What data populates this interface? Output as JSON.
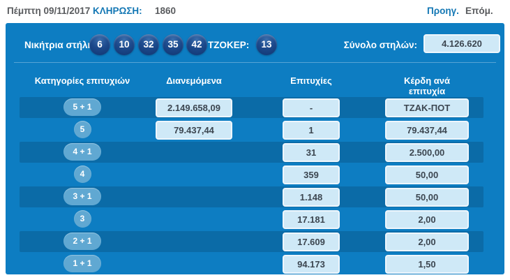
{
  "top_bar": {
    "date": "Πέμπτη 09/11/2017",
    "draw_label": "ΚΛΗΡΩΣΗ:",
    "draw_number": "1860",
    "prev_label": "Προηγ.",
    "next_label": "Επόμ."
  },
  "winning_section": {
    "winning_label": "Νικήτρια στήλη:",
    "numbers": [
      "6",
      "10",
      "32",
      "35",
      "42"
    ],
    "joker_label": "ΤΖΟΚΕΡ:",
    "joker_number": "13",
    "total_label": "Σύνολο στηλών:",
    "total_value": "4.126.620"
  },
  "table": {
    "headers": [
      "Κατηγορίες επιτυχιών",
      "Διανεμόμενα",
      "Επιτυχίες",
      "Κέρδη ανά επιτυχία"
    ],
    "rows": [
      {
        "category": "5 + 1",
        "distributed": "2.149.658,09",
        "winners": "-",
        "prize": "ΤΖΑΚ-ΠΟΤ"
      },
      {
        "category": "5",
        "distributed": "79.437,44",
        "winners": "1",
        "prize": "79.437,44"
      },
      {
        "category": "4 + 1",
        "distributed": "",
        "winners": "31",
        "prize": "2.500,00"
      },
      {
        "category": "4",
        "distributed": "",
        "winners": "359",
        "prize": "50,00"
      },
      {
        "category": "3 + 1",
        "distributed": "",
        "winners": "1.148",
        "prize": "50,00"
      },
      {
        "category": "3",
        "distributed": "",
        "winners": "17.181",
        "prize": "2,00"
      },
      {
        "category": "2 + 1",
        "distributed": "",
        "winners": "17.609",
        "prize": "2,00"
      },
      {
        "category": "1 + 1",
        "distributed": "",
        "winners": "94.173",
        "prize": "1,50"
      }
    ]
  },
  "colors": {
    "panel_blue": "#0d7dc2",
    "stripe_blue": "#0b6ba7",
    "badge_blue": "#60a8d2",
    "box_fill": "#cfe9f7",
    "ball_navy": "#1d4a8c",
    "link_blue": "#1377b4",
    "text_gray": "#595b5e"
  }
}
